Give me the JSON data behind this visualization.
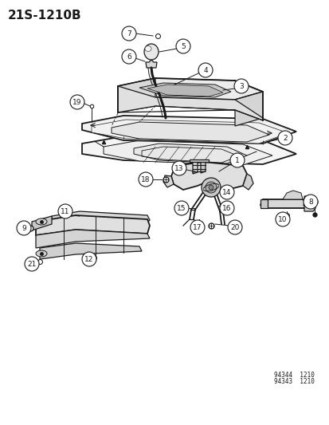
{
  "title": "21S-1210B",
  "bg_color": "#ffffff",
  "line_color": "#1a1a1a",
  "watermark1": "94344  1210",
  "watermark2": "94343  1210",
  "fig_width": 4.14,
  "fig_height": 5.33,
  "dpi": 100,
  "title_fontsize": 11,
  "label_fontsize": 6.5,
  "label_circle_r": 9
}
